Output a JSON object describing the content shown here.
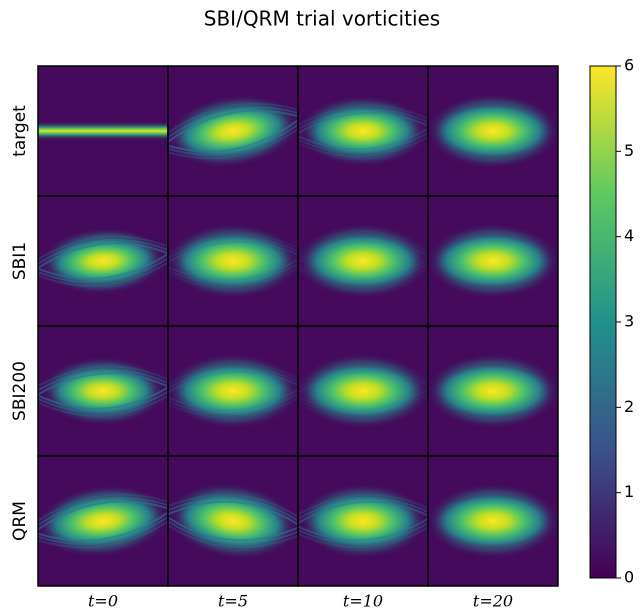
{
  "chart_data": {
    "type": "image-grid",
    "title": "SBI/QRM trial vorticities",
    "rows": [
      "target",
      "SBI1",
      "SBI200",
      "QRM"
    ],
    "columns": [
      "t=0",
      "t=5",
      "t=10",
      "t=20"
    ],
    "colorbar": {
      "lim": [
        0,
        6
      ],
      "ticks": [
        0,
        1,
        2,
        3,
        4,
        5,
        6
      ],
      "colormap": "viridis"
    }
  }
}
